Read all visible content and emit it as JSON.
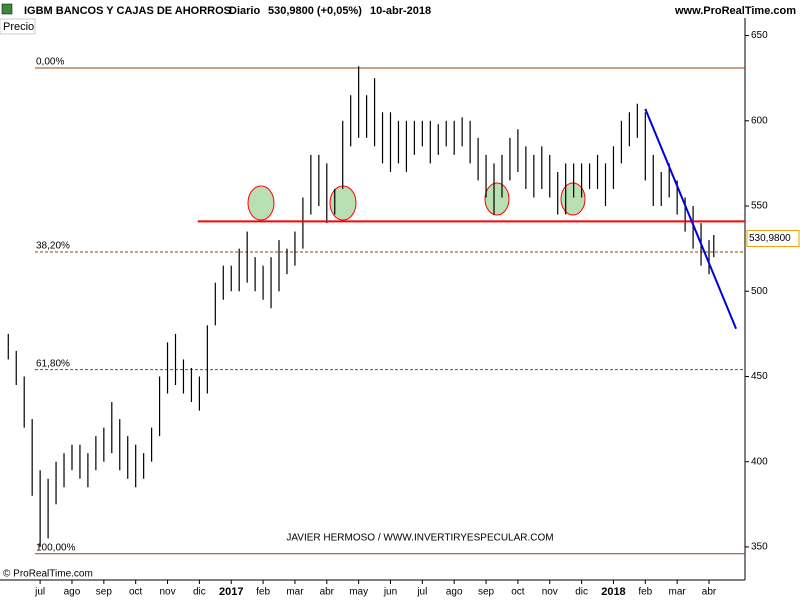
{
  "header": {
    "title": "IGBM BANCOS Y CAJAS DE AHORROS",
    "period": "Diario",
    "last": "530,9800 (+0,05%)",
    "date": "10-abr-2018",
    "site": "www.ProRealTime.com"
  },
  "chart_data": {
    "type": "ohlc",
    "panel_label": "Precio",
    "x": [
      -1.0,
      -0.75,
      -0.5,
      -0.25,
      0.0,
      0.25,
      0.5,
      0.75,
      1.0,
      1.25,
      1.5,
      1.75,
      2.0,
      2.25,
      2.5,
      2.75,
      3.0,
      3.25,
      3.5,
      3.75,
      4.0,
      4.25,
      4.5,
      4.75,
      5.0,
      5.25,
      5.5,
      5.75,
      6.0,
      6.25,
      6.5,
      6.75,
      7.0,
      7.25,
      7.5,
      7.75,
      8.0,
      8.25,
      8.5,
      8.75,
      9.0,
      9.25,
      9.5,
      9.75,
      10.0,
      10.25,
      10.5,
      10.75,
      11.0,
      11.25,
      11.5,
      11.75,
      12.0,
      12.25,
      12.5,
      12.75,
      13.0,
      13.25,
      13.5,
      13.75,
      14.0,
      14.25,
      14.5,
      14.75,
      15.0,
      15.25,
      15.5,
      15.75,
      16.0,
      16.25,
      16.5,
      16.75,
      17.0,
      17.25,
      17.5,
      17.75,
      18.0,
      18.25,
      18.5,
      18.75,
      19.0,
      19.25,
      19.5,
      19.75,
      20.0,
      20.25,
      20.5,
      20.75,
      21.0,
      21.15
    ],
    "low": [
      460,
      445,
      420,
      380,
      350,
      355,
      375,
      385,
      395,
      390,
      385,
      395,
      400,
      405,
      395,
      390,
      385,
      390,
      400,
      415,
      440,
      445,
      440,
      435,
      430,
      440,
      480,
      495,
      500,
      500,
      505,
      500,
      495,
      490,
      500,
      510,
      515,
      525,
      545,
      550,
      540,
      545,
      560,
      585,
      590,
      590,
      585,
      575,
      570,
      575,
      570,
      580,
      585,
      575,
      580,
      585,
      580,
      585,
      575,
      565,
      555,
      545,
      555,
      565,
      570,
      560,
      555,
      560,
      555,
      545,
      545,
      555,
      555,
      560,
      560,
      550,
      560,
      575,
      585,
      590,
      565,
      550,
      550,
      555,
      545,
      535,
      525,
      515,
      510,
      520
    ],
    "high": [
      475,
      465,
      450,
      425,
      395,
      390,
      400,
      405,
      410,
      410,
      405,
      415,
      420,
      435,
      425,
      415,
      410,
      405,
      420,
      450,
      470,
      475,
      460,
      455,
      450,
      480,
      505,
      515,
      515,
      525,
      535,
      520,
      515,
      520,
      530,
      525,
      535,
      555,
      580,
      580,
      575,
      560,
      600,
      615,
      632,
      615,
      625,
      605,
      605,
      600,
      600,
      600,
      600,
      600,
      598,
      600,
      600,
      602,
      600,
      590,
      580,
      575,
      580,
      590,
      595,
      585,
      580,
      585,
      580,
      570,
      575,
      575,
      575,
      575,
      580,
      575,
      585,
      600,
      605,
      610,
      605,
      580,
      570,
      575,
      565,
      555,
      550,
      540,
      530,
      533
    ],
    "color": "#000000",
    "xlim": [
      -1.26,
      22.13
    ],
    "xticks": [
      {
        "value": 0,
        "label": "jul"
      },
      {
        "value": 1,
        "label": "ago"
      },
      {
        "value": 2,
        "label": "sep"
      },
      {
        "value": 3,
        "label": "oct"
      },
      {
        "value": 4,
        "label": "nov"
      },
      {
        "value": 5,
        "label": "dic"
      },
      {
        "value": 6,
        "label": "2017"
      },
      {
        "value": 7,
        "label": "feb"
      },
      {
        "value": 8,
        "label": "mar"
      },
      {
        "value": 9,
        "label": "abr"
      },
      {
        "value": 10,
        "label": "may"
      },
      {
        "value": 11,
        "label": "jun"
      },
      {
        "value": 12,
        "label": "jul"
      },
      {
        "value": 13,
        "label": "ago"
      },
      {
        "value": 14,
        "label": "sep"
      },
      {
        "value": 15,
        "label": "oct"
      },
      {
        "value": 16,
        "label": "nov"
      },
      {
        "value": 17,
        "label": "dic"
      },
      {
        "value": 18,
        "label": "2018"
      },
      {
        "value": 19,
        "label": "feb"
      },
      {
        "value": 20,
        "label": "mar"
      },
      {
        "value": 21,
        "label": "abr"
      }
    ],
    "ylim": [
      330.6,
      660.3
    ],
    "yticks": [
      350,
      400,
      450,
      500,
      550,
      600,
      650
    ],
    "fib_levels": [
      {
        "label": "0,00%",
        "value": 631
      },
      {
        "label": "38,20%",
        "value": 523
      },
      {
        "label": "61,80%",
        "value": 454
      },
      {
        "label": "100,00%",
        "value": 346
      }
    ],
    "support": {
      "value": 541,
      "from": 4.95,
      "color": "#ff0000"
    },
    "trendline": {
      "x": [
        19.0,
        21.85
      ],
      "y": [
        607,
        478
      ],
      "color": "#0000dd"
    },
    "last_price": {
      "value": 530.98,
      "label": "530,9800"
    },
    "credit": "JAVIER HERMOSO / WWW.INVERTIRYESPECULAR.COM",
    "footer": "© ProRealTime.com"
  }
}
